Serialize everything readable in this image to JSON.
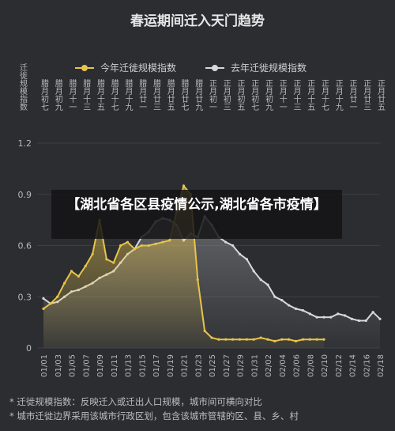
{
  "chart_data": {
    "type": "line",
    "title": "春运期间迁入天门趋势",
    "y_label": "迁徙规模指数",
    "categories": [
      "01/01",
      null,
      "01/03",
      null,
      "01/05",
      null,
      "01/07",
      null,
      "01/09",
      null,
      "01/11",
      null,
      "01/13",
      null,
      "01/15",
      null,
      "01/17",
      null,
      "01/19",
      null,
      "01/21",
      null,
      "01/23",
      null,
      "01/25",
      null,
      "01/27",
      null,
      "01/29",
      null,
      "01/31",
      null,
      "02/02",
      null,
      "02/04",
      null,
      "02/06",
      null,
      "02/08",
      null,
      "02/10",
      null,
      "02/12",
      null,
      "02/14",
      null,
      "02/16",
      null,
      "02/18"
    ],
    "top_labels": [
      "腊月初七",
      null,
      "腊月初九",
      null,
      "腊月十一",
      null,
      "腊月十三",
      null,
      "腊月十五",
      null,
      "腊月十七",
      null,
      "腊月十九",
      null,
      "腊月廿一",
      null,
      "腊月廿三",
      null,
      "腊月廿五",
      null,
      "腊月廿七",
      null,
      "腊月廿九",
      null,
      "正月初一",
      null,
      "正月初三",
      null,
      "正月初五",
      null,
      "正月初七",
      null,
      "正月初九",
      null,
      "正月十一",
      null,
      "正月十三",
      null,
      "正月十五",
      null,
      "正月十七",
      null,
      "正月十九",
      null,
      "正月廿一",
      null,
      "正月廿三",
      null,
      "正月廿五"
    ],
    "series": [
      {
        "name": "今年迁徙规模指数",
        "color": "#e8c44a",
        "values": [
          0.23,
          0.26,
          0.3,
          0.38,
          0.45,
          0.42,
          0.48,
          0.55,
          0.75,
          0.52,
          0.5,
          0.6,
          0.62,
          0.58,
          0.6,
          0.6,
          0.61,
          0.62,
          0.63,
          0.8,
          0.95,
          0.9,
          0.4,
          0.1,
          0.06,
          0.05,
          0.05,
          0.05,
          0.05,
          0.05,
          0.05,
          0.06,
          0.05,
          0.04,
          0.05,
          0.05,
          0.04,
          0.05,
          0.05,
          0.05,
          0.05,
          null,
          null,
          null,
          null,
          null,
          null,
          null,
          null
        ]
      },
      {
        "name": "去年迁徙规模指数",
        "color": "#d9d9d9",
        "values": [
          0.29,
          0.26,
          0.27,
          0.3,
          0.33,
          0.34,
          0.36,
          0.38,
          0.41,
          0.43,
          0.45,
          0.5,
          0.55,
          0.58,
          0.65,
          0.68,
          0.74,
          0.76,
          0.75,
          0.72,
          0.63,
          0.67,
          0.65,
          0.77,
          0.72,
          0.65,
          0.62,
          0.6,
          0.55,
          0.52,
          0.45,
          0.4,
          0.37,
          0.3,
          0.28,
          0.25,
          0.23,
          0.22,
          0.2,
          0.18,
          0.18,
          0.18,
          0.2,
          0.19,
          0.17,
          0.16,
          0.16,
          0.21,
          0.17
        ]
      }
    ],
    "ylim": [
      0,
      1.2
    ],
    "yticks": [
      0,
      0.3,
      0.6,
      0.9,
      1.2
    ],
    "notes": [
      "* 迁徙规模指数：反映迁入或迁出人口规模，城市间可横向对比",
      "* 城市迁徙边界采用该城市行政区划，包含该城市管辖的区、县、乡、村"
    ]
  },
  "banner": "【湖北省各区县疫情公示,湖北省各市疫情】"
}
